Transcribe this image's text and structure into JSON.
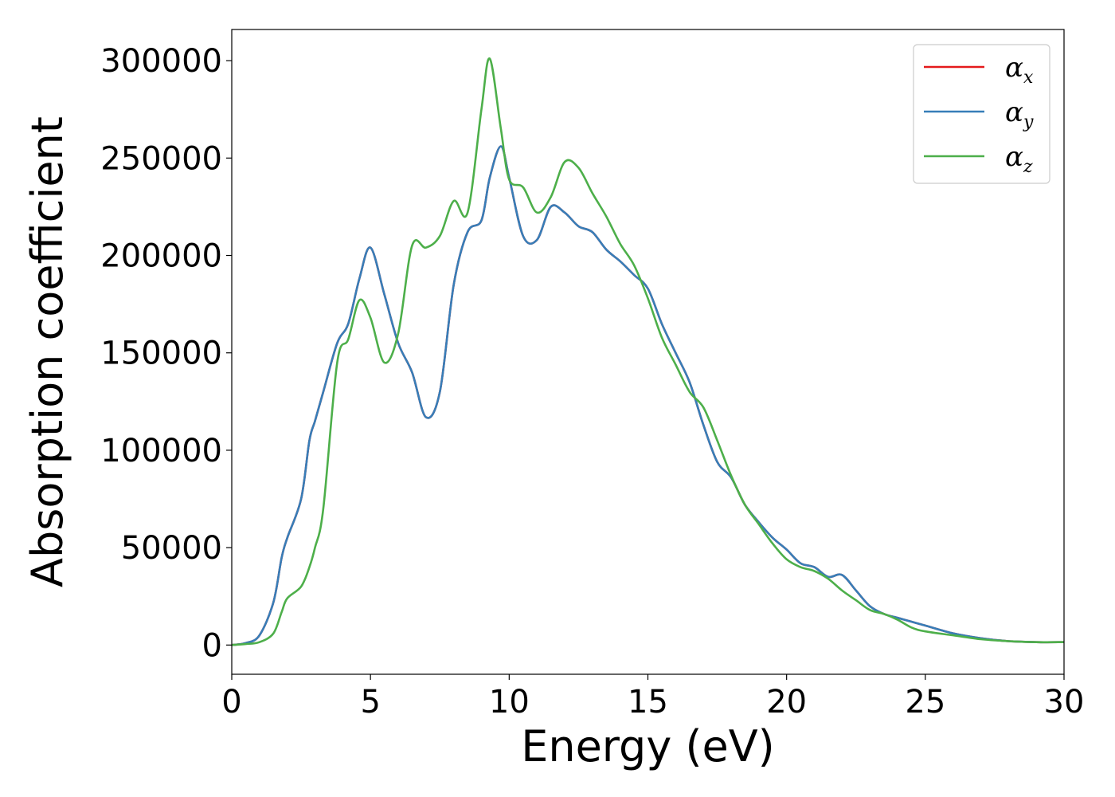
{
  "chart_data": {
    "type": "line",
    "title": "",
    "xlabel": "Energy (eV)",
    "ylabel": "Absorption coefficient",
    "xlim": [
      0,
      30
    ],
    "ylim": [
      -15000,
      316000
    ],
    "xticks": [
      0,
      5,
      10,
      15,
      20,
      25,
      30
    ],
    "xtick_labels": [
      "0",
      "5",
      "10",
      "15",
      "20",
      "25",
      "30"
    ],
    "yticks": [
      0,
      50000,
      100000,
      150000,
      200000,
      250000,
      300000
    ],
    "ytick_labels": [
      "0",
      "50000",
      "100000",
      "150000",
      "200000",
      "250000",
      "300000"
    ],
    "grid": false,
    "legend_position": "top-right",
    "x": [
      0,
      0.5,
      1,
      1.5,
      1.8,
      2,
      2.5,
      2.8,
      3,
      3.3,
      3.8,
      4.2,
      4.6,
      5,
      5.5,
      6,
      6.5,
      7,
      7.5,
      8,
      8.5,
      9,
      9.3,
      9.7,
      10,
      10.5,
      11,
      11.5,
      12,
      12.5,
      13,
      13.5,
      14,
      14.5,
      15,
      15.5,
      16,
      16.5,
      17,
      17.5,
      18,
      18.5,
      19,
      19.5,
      20,
      20.5,
      21,
      21.5,
      22,
      22.5,
      23,
      23.5,
      24,
      24.5,
      25,
      26,
      27,
      28,
      29,
      30
    ],
    "series": [
      {
        "name": "αx",
        "label_base": "α",
        "label_sub": "x",
        "color": "#e41a1c",
        "values": [
          0,
          1000,
          5000,
          22000,
          45000,
          55000,
          75000,
          105000,
          115000,
          130000,
          155000,
          165000,
          188000,
          204000,
          180000,
          155000,
          140000,
          117000,
          130000,
          185000,
          212000,
          218000,
          240000,
          256000,
          240000,
          210000,
          208000,
          225000,
          222000,
          215000,
          212000,
          203000,
          197000,
          190000,
          183000,
          165000,
          150000,
          135000,
          113000,
          94000,
          86000,
          72000,
          63000,
          55000,
          49000,
          42000,
          40000,
          35000,
          36000,
          28000,
          20000,
          16000,
          14000,
          12000,
          10000,
          6000,
          3500,
          2000,
          1500,
          1500
        ]
      },
      {
        "name": "αy",
        "label_base": "α",
        "label_sub": "y",
        "color": "#377eb8",
        "values": [
          0,
          1000,
          5000,
          22000,
          45000,
          55000,
          75000,
          105000,
          115000,
          130000,
          155000,
          165000,
          188000,
          204000,
          180000,
          155000,
          140000,
          117000,
          130000,
          185000,
          212000,
          218000,
          240000,
          256000,
          240000,
          210000,
          208000,
          225000,
          222000,
          215000,
          212000,
          203000,
          197000,
          190000,
          183000,
          165000,
          150000,
          135000,
          113000,
          94000,
          86000,
          72000,
          63000,
          55000,
          49000,
          42000,
          40000,
          35000,
          36000,
          28000,
          20000,
          16000,
          14000,
          12000,
          10000,
          6000,
          3500,
          2000,
          1500,
          1500
        ]
      },
      {
        "name": "αz",
        "label_base": "α",
        "label_sub": "z",
        "color": "#4daf4a",
        "values": [
          0,
          500,
          1500,
          6000,
          17000,
          24000,
          30000,
          40000,
          50000,
          70000,
          145000,
          157000,
          177000,
          168000,
          145000,
          160000,
          205000,
          204000,
          210000,
          228000,
          222000,
          275000,
          301000,
          265000,
          239000,
          235000,
          222000,
          230000,
          248000,
          245000,
          232000,
          220000,
          206000,
          195000,
          178000,
          158000,
          144000,
          130000,
          122000,
          105000,
          87000,
          72000,
          62000,
          52000,
          44000,
          40000,
          38000,
          34000,
          28000,
          23000,
          18000,
          16000,
          13000,
          9000,
          7000,
          5000,
          3000,
          2000,
          1500,
          1500
        ]
      }
    ]
  }
}
